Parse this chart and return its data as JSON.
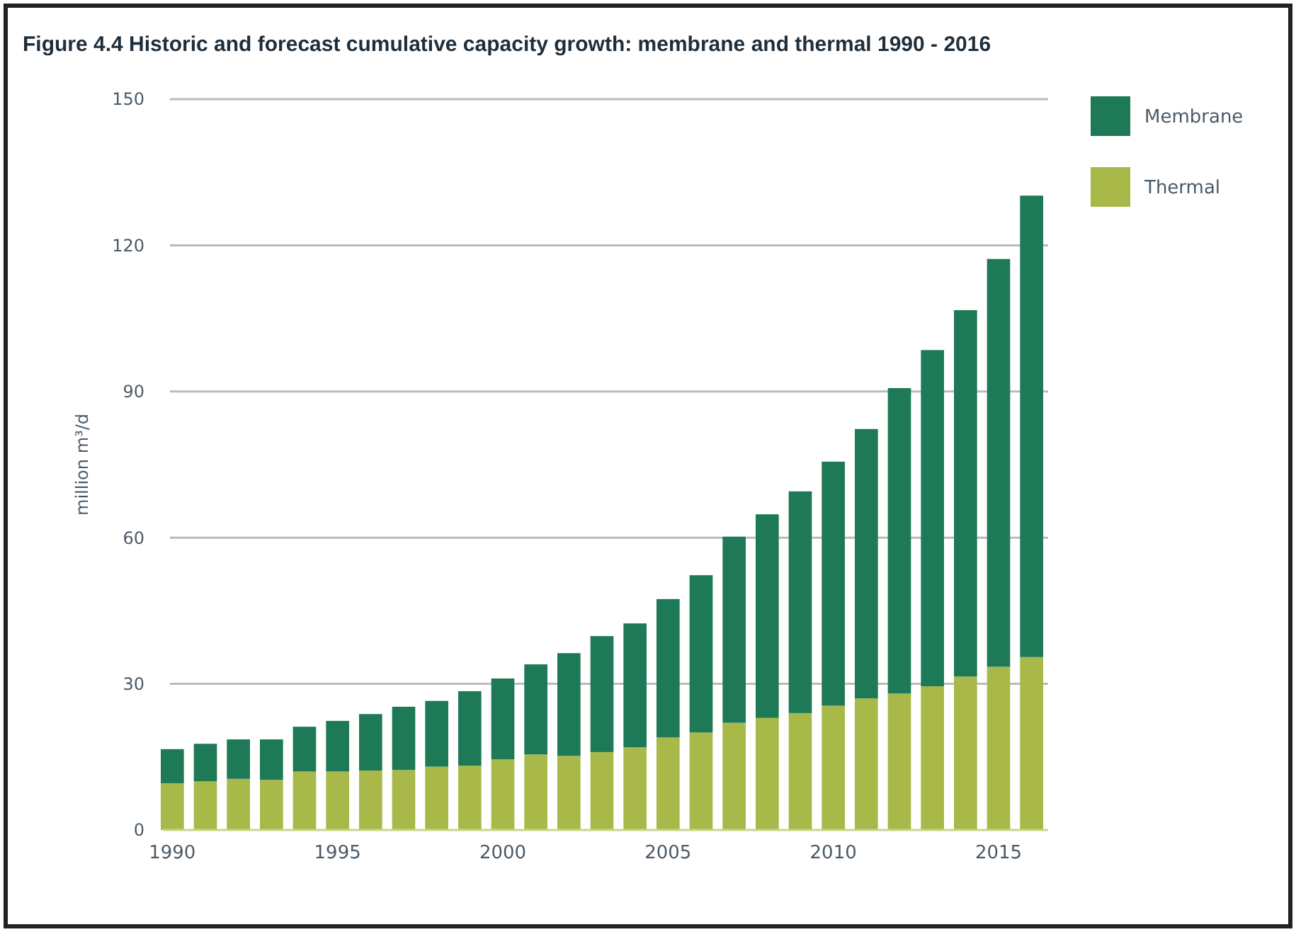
{
  "chart_data": {
    "type": "bar",
    "title": "Figure 4.4 Historic and forecast cumulative capacity growth: membrane and thermal 1990 - 2016",
    "ylabel": "million m³/d",
    "categories": [
      "1990",
      null,
      null,
      null,
      null,
      "1995",
      null,
      null,
      null,
      null,
      "2000",
      null,
      null,
      null,
      null,
      "2005",
      null,
      null,
      null,
      null,
      "2010",
      null,
      null,
      null,
      null,
      "2015",
      null
    ],
    "series": [
      {
        "name": "Thermal",
        "color": "#a9b949",
        "values": [
          9.6,
          10,
          10.5,
          10.3,
          12,
          12,
          12.2,
          12.3,
          13,
          13.2,
          14.5,
          15.5,
          15.2,
          16,
          17,
          19,
          20,
          22,
          23,
          24,
          25.5,
          27,
          28,
          29.5,
          31.5,
          33.5,
          35.5
        ]
      },
      {
        "name": "Membrane",
        "color": "#1e7a56",
        "values": [
          7,
          7.7,
          8.1,
          8.3,
          9.2,
          10.4,
          11.6,
          13,
          13.5,
          15.3,
          16.6,
          18.5,
          21.1,
          23.8,
          25.4,
          28.4,
          32.3,
          38.2,
          41.8,
          45.5,
          50.1,
          55.3,
          62.7,
          69,
          75.2,
          83.7,
          94.7
        ]
      }
    ],
    "stacked": true,
    "ylim": [
      0,
      150
    ],
    "yticks": [
      0,
      30,
      60,
      90,
      120,
      150
    ],
    "grid": "y",
    "legend": "top right"
  }
}
